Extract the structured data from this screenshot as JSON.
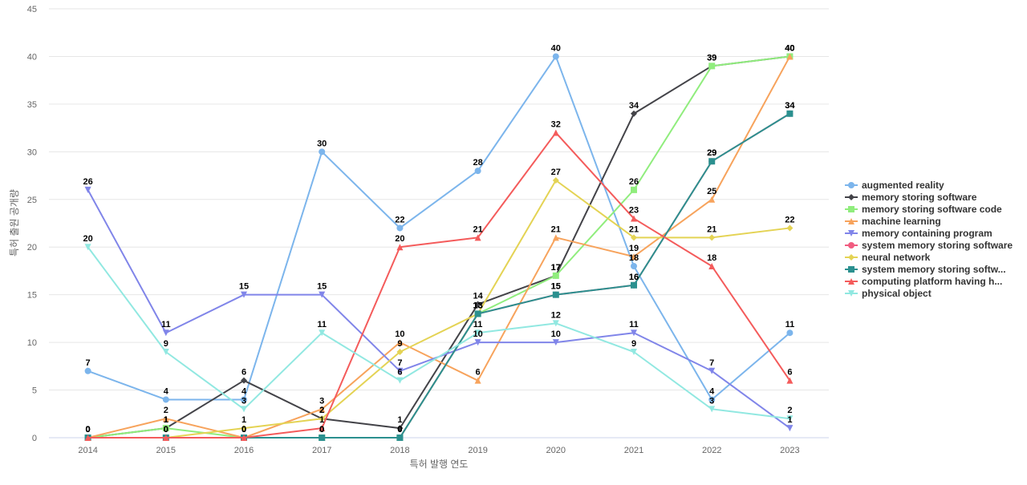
{
  "chart_data": {
    "type": "line",
    "xlabel": "특허 발행 연도",
    "ylabel": "특허 출원 공개량",
    "ylim": [
      0,
      45
    ],
    "yticks": [
      0,
      5,
      10,
      15,
      20,
      25,
      30,
      35,
      40,
      45
    ],
    "categories": [
      "2014",
      "2015",
      "2016",
      "2017",
      "2018",
      "2019",
      "2020",
      "2021",
      "2022",
      "2023"
    ],
    "legend_position": "right",
    "series": [
      {
        "name": "augmented reality",
        "color": "#7cb5ec",
        "marker": "circle",
        "values": [
          7,
          4,
          4,
          30,
          22,
          28,
          40,
          18,
          4,
          11
        ]
      },
      {
        "name": "memory storing software",
        "color": "#434348",
        "marker": "diamond",
        "values": [
          0,
          1,
          6,
          2,
          1,
          14,
          17,
          34,
          39,
          40
        ]
      },
      {
        "name": "memory storing software code",
        "color": "#90ed7d",
        "marker": "square",
        "values": [
          0,
          1,
          0,
          0,
          0,
          13,
          17,
          26,
          39,
          40
        ]
      },
      {
        "name": "machine learning",
        "color": "#f7a35c",
        "marker": "triangle",
        "values": [
          0,
          2,
          0,
          3,
          10,
          6,
          21,
          19,
          25,
          40
        ]
      },
      {
        "name": "memory containing program",
        "color": "#8085e9",
        "marker": "triangle-down",
        "values": [
          26,
          11,
          15,
          15,
          7,
          10,
          10,
          11,
          7,
          1
        ]
      },
      {
        "name": "system memory storing software",
        "color": "#f15c80",
        "marker": "circle",
        "values": [
          0,
          0,
          0,
          0,
          0,
          13,
          15,
          16,
          29,
          34
        ]
      },
      {
        "name": "neural network",
        "color": "#e4d354",
        "marker": "diamond",
        "values": [
          0,
          0,
          1,
          2,
          9,
          13,
          27,
          21,
          21,
          22
        ]
      },
      {
        "name": "system memory storing softw...",
        "color": "#2b908f",
        "marker": "square",
        "values": [
          0,
          0,
          0,
          0,
          0,
          13,
          15,
          16,
          29,
          34
        ]
      },
      {
        "name": "computing platform having h...",
        "color": "#f45b5b",
        "marker": "triangle",
        "values": [
          0,
          0,
          0,
          1,
          20,
          21,
          32,
          23,
          18,
          6
        ]
      },
      {
        "name": "physical object",
        "color": "#91e8e1",
        "marker": "triangle-down",
        "values": [
          20,
          9,
          3,
          11,
          6,
          11,
          12,
          9,
          3,
          2
        ]
      }
    ]
  }
}
